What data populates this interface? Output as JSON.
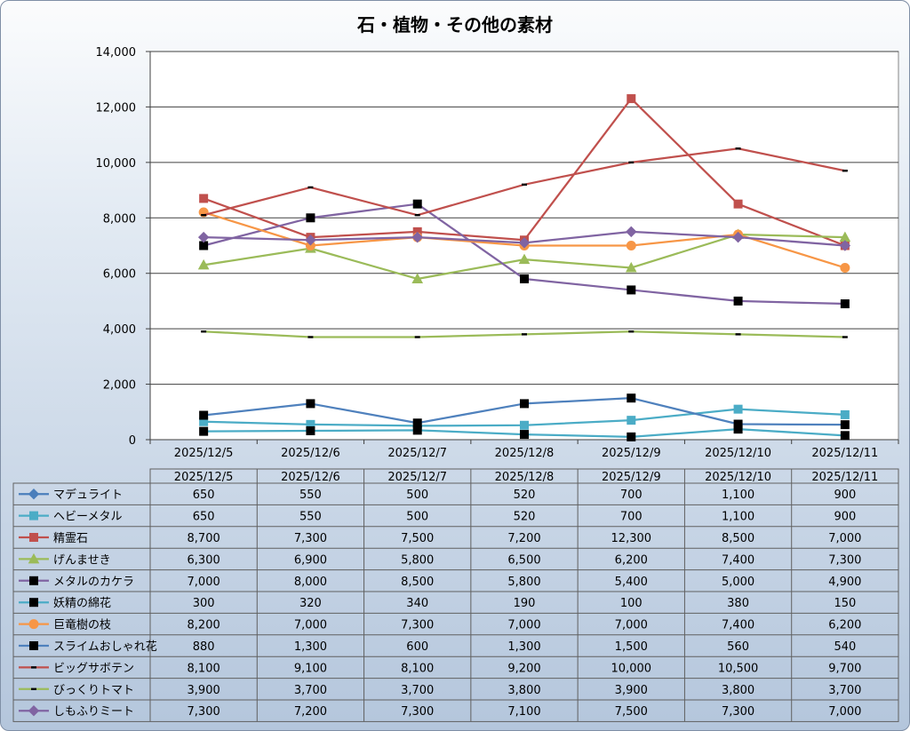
{
  "chart_data": {
    "type": "line",
    "title": "石・植物・その他の素材",
    "categories": [
      "2025/12/5",
      "2025/12/6",
      "2025/12/7",
      "2025/12/8",
      "2025/12/9",
      "2025/12/10",
      "2025/12/11"
    ],
    "ylim": [
      0,
      14000
    ],
    "yticks": [
      0,
      2000,
      4000,
      6000,
      8000,
      10000,
      12000,
      14000
    ],
    "ytick_labels": [
      "0",
      "2,000",
      "4,000",
      "6,000",
      "8,000",
      "10,000",
      "12,000",
      "14,000"
    ],
    "grid": true,
    "legend": "data-table",
    "series": [
      {
        "name": "マデュライト",
        "color": "#4a7ebb",
        "marker": "diamond",
        "plot": false,
        "values": [
          650,
          550,
          500,
          520,
          700,
          1100,
          900
        ],
        "labels": [
          "650",
          "550",
          "500",
          "520",
          "700",
          "1,100",
          "900"
        ]
      },
      {
        "name": "ヘビーメタル",
        "color": "#4bacc6",
        "marker": "square",
        "plot": true,
        "values": [
          650,
          550,
          500,
          520,
          700,
          1100,
          900
        ],
        "labels": [
          "650",
          "550",
          "500",
          "520",
          "700",
          "1,100",
          "900"
        ]
      },
      {
        "name": "精霊石",
        "color": "#c0504d",
        "marker": "square",
        "plot": true,
        "values": [
          8700,
          7300,
          7500,
          7200,
          12300,
          8500,
          7000
        ],
        "labels": [
          "8,700",
          "7,300",
          "7,500",
          "7,200",
          "12,300",
          "8,500",
          "7,000"
        ]
      },
      {
        "name": "げんませき",
        "color": "#9bbb59",
        "marker": "triangle",
        "plot": true,
        "values": [
          6300,
          6900,
          5800,
          6500,
          6200,
          7400,
          7300
        ],
        "labels": [
          "6,300",
          "6,900",
          "5,800",
          "6,500",
          "6,200",
          "7,400",
          "7,300"
        ]
      },
      {
        "name": "メタルのカケラ",
        "color": "#8064a2",
        "marker": "blacksquare",
        "plot": true,
        "values": [
          7000,
          8000,
          8500,
          5800,
          5400,
          5000,
          4900
        ],
        "labels": [
          "7,000",
          "8,000",
          "8,500",
          "5,800",
          "5,400",
          "5,000",
          "4,900"
        ]
      },
      {
        "name": "妖精の綿花",
        "color": "#4bacc6",
        "marker": "blacksquare",
        "plot": true,
        "values": [
          300,
          320,
          340,
          190,
          100,
          380,
          150
        ],
        "labels": [
          "300",
          "320",
          "340",
          "190",
          "100",
          "380",
          "150"
        ]
      },
      {
        "name": "巨竜樹の枝",
        "color": "#f79646",
        "marker": "circle",
        "plot": true,
        "values": [
          8200,
          7000,
          7300,
          7000,
          7000,
          7400,
          6200
        ],
        "labels": [
          "8,200",
          "7,000",
          "7,300",
          "7,000",
          "7,000",
          "7,400",
          "6,200"
        ]
      },
      {
        "name": "スライムおしゃれ花",
        "color": "#4f81bd",
        "marker": "blacksquare",
        "plot": true,
        "values": [
          880,
          1300,
          600,
          1300,
          1500,
          560,
          540
        ],
        "labels": [
          "880",
          "1,300",
          "600",
          "1,300",
          "1,500",
          "560",
          "540"
        ]
      },
      {
        "name": "ビッグサボテン",
        "color": "#c0504d",
        "marker": "dash",
        "plot": true,
        "values": [
          8100,
          9100,
          8100,
          9200,
          10000,
          10500,
          9700
        ],
        "labels": [
          "8,100",
          "9,100",
          "8,100",
          "9,200",
          "10,000",
          "10,500",
          "9,700"
        ]
      },
      {
        "name": "びっくりトマト",
        "color": "#9bbb59",
        "marker": "dash",
        "plot": true,
        "values": [
          3900,
          3700,
          3700,
          3800,
          3900,
          3800,
          3700
        ],
        "labels": [
          "3,900",
          "3,700",
          "3,700",
          "3,800",
          "3,900",
          "3,800",
          "3,700"
        ]
      },
      {
        "name": "しもふりミート",
        "color": "#8064a2",
        "marker": "diamond",
        "plot": true,
        "values": [
          7300,
          7200,
          7300,
          7100,
          7500,
          7300,
          7000
        ],
        "labels": [
          "7,300",
          "7,200",
          "7,300",
          "7,100",
          "7,500",
          "7,300",
          "7,000"
        ]
      }
    ]
  }
}
